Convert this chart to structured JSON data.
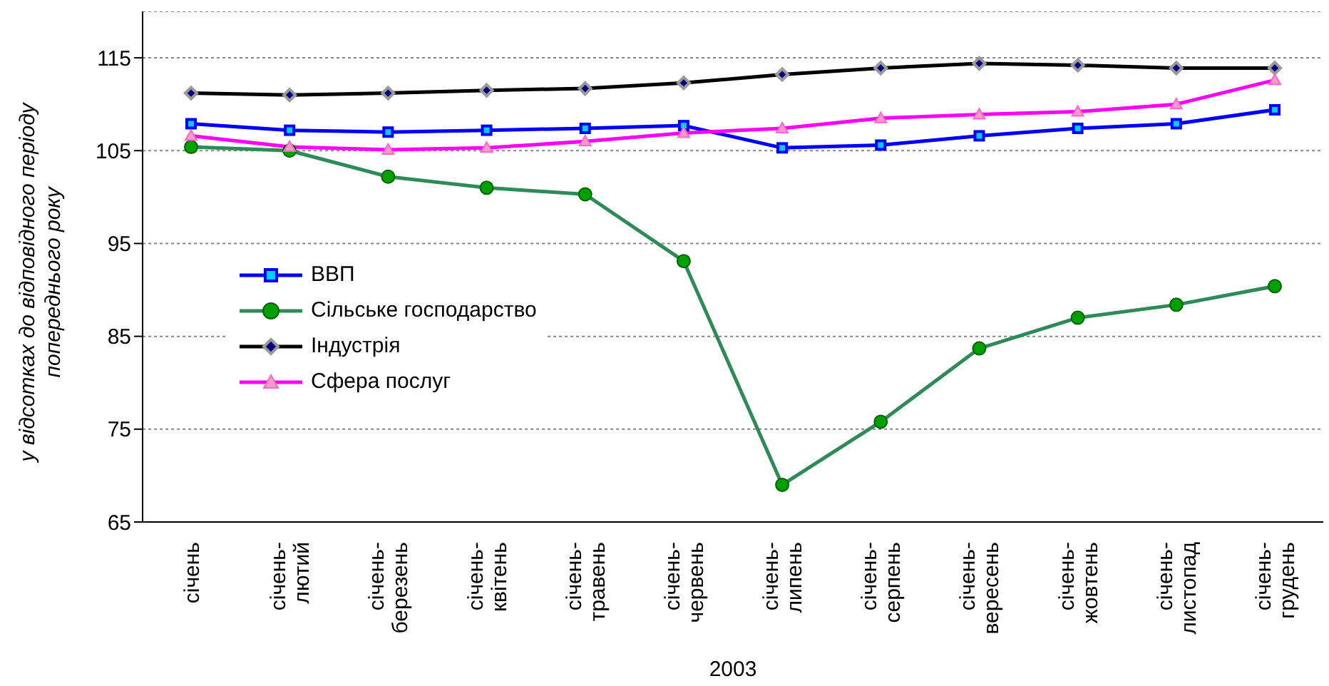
{
  "chart_data": {
    "type": "line",
    "categories": [
      "січень",
      "січень-лютий",
      "січень-березень",
      "січень-квітень",
      "січень-травень",
      "січень-червень",
      "січень-липень",
      "січень-серпень",
      "січень-вересень",
      "січень-жовтень",
      "січень-листопад",
      "січень-грудень"
    ],
    "series": [
      {
        "name": "ВВП",
        "color": "#0000ff",
        "marker": "square",
        "values": [
          107.9,
          107.2,
          107.0,
          107.2,
          107.4,
          107.7,
          105.3,
          105.6,
          106.6,
          107.4,
          107.9,
          109.4
        ]
      },
      {
        "name": "Сільське господарство",
        "color": "#2e8b57",
        "marker": "circle",
        "values": [
          105.4,
          105.0,
          102.2,
          101.0,
          100.3,
          93.1,
          69.0,
          75.8,
          83.7,
          87.0,
          88.4,
          90.4
        ]
      },
      {
        "name": "Індустрія",
        "color": "#000000",
        "marker": "diamond",
        "values": [
          111.2,
          111.0,
          111.2,
          111.5,
          111.7,
          112.3,
          113.2,
          113.9,
          114.4,
          114.2,
          113.9,
          113.9
        ]
      },
      {
        "name": "Сфера послуг",
        "color": "#ff00ff",
        "marker": "triangle",
        "values": [
          106.6,
          105.4,
          105.1,
          105.3,
          106.0,
          106.9,
          107.4,
          108.5,
          108.9,
          109.2,
          110.0,
          112.6
        ]
      }
    ],
    "xlabel": "2003",
    "ylabel": "у відсотках до відповідного періоду попереднього року",
    "ylim": [
      65,
      120
    ],
    "yticks": [
      65,
      75,
      85,
      95,
      105,
      115
    ],
    "grid": "y",
    "legend": "left",
    "line_style": "solid"
  }
}
